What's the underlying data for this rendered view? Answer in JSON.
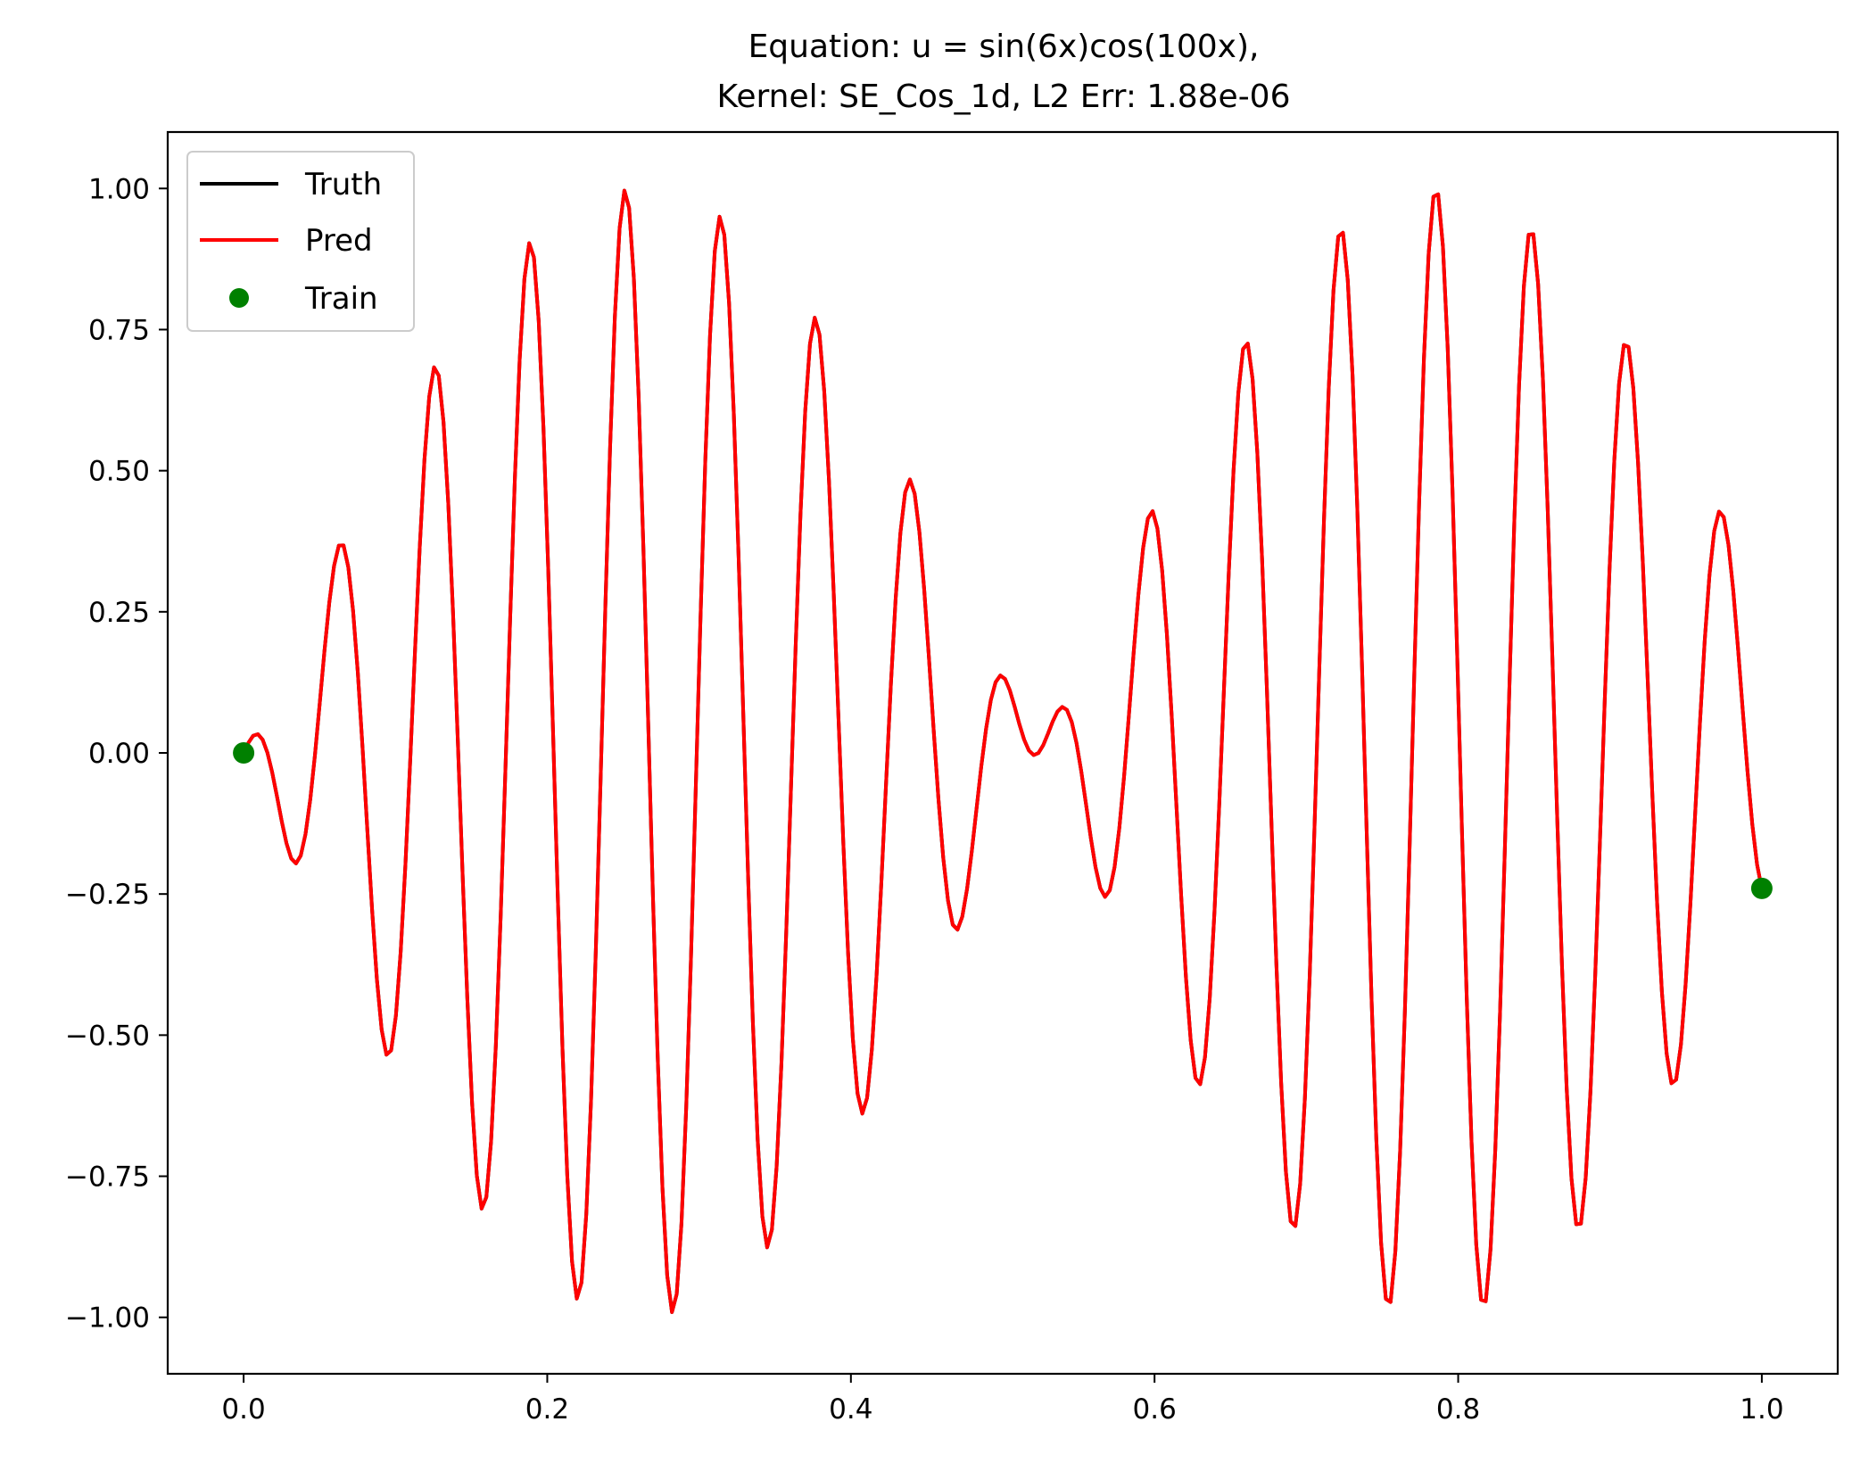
{
  "chart_data": {
    "type": "line",
    "title_line1": "Equation: u = sin(6x)cos(100x),",
    "title_line2": "Kernel: SE_Cos_1d,   L2 Err: 1.88e-06",
    "xlabel": "",
    "ylabel": "",
    "xlim": [
      -0.05,
      1.05
    ],
    "ylim": [
      -1.1,
      1.1
    ],
    "x_ticks": [
      "0.0",
      "0.2",
      "0.4",
      "0.6",
      "0.8",
      "1.0"
    ],
    "x_tick_values": [
      0.0,
      0.2,
      0.4,
      0.6,
      0.8,
      1.0
    ],
    "y_ticks": [
      "−1.00",
      "−0.75",
      "−0.50",
      "−0.25",
      "0.00",
      "0.25",
      "0.50",
      "0.75",
      "1.00"
    ],
    "y_tick_values": [
      -1.0,
      -0.75,
      -0.5,
      -0.25,
      0.0,
      0.25,
      0.5,
      0.75,
      1.0
    ],
    "grid": false,
    "legend_position": "top-left",
    "series": [
      {
        "name": "Truth",
        "kind": "line",
        "color": "#000000",
        "function": "sin(6x)cos(100x)",
        "x_range": [
          0.0,
          1.0
        ],
        "samples": 320
      },
      {
        "name": "Pred",
        "kind": "line",
        "color": "#ff0000",
        "function": "sin(6x)cos(100x)",
        "x_range": [
          0.0,
          1.0
        ],
        "samples": 320
      },
      {
        "name": "Train",
        "kind": "scatter",
        "color": "#008000",
        "points": [
          [
            0.0,
            0.0
          ],
          [
            1.0,
            -0.24
          ]
        ]
      }
    ]
  }
}
